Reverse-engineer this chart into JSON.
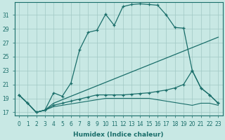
{
  "xlabel": "Humidex (Indice chaleur)",
  "bg_color": "#c8e8e4",
  "grid_color": "#a0c8c4",
  "line_color": "#1a6e6a",
  "xlim": [
    -0.5,
    23.5
  ],
  "ylim": [
    16.5,
    32.8
  ],
  "yticks": [
    17,
    19,
    21,
    23,
    25,
    27,
    29,
    31
  ],
  "xticks": [
    0,
    1,
    2,
    3,
    4,
    5,
    6,
    7,
    8,
    9,
    10,
    11,
    12,
    13,
    14,
    15,
    16,
    17,
    18,
    19,
    20,
    21,
    22,
    23
  ],
  "line1_x": [
    0,
    1,
    2,
    3,
    4,
    5,
    6,
    7,
    8,
    9,
    10,
    11,
    12,
    13,
    14,
    15,
    16,
    17,
    18,
    19,
    20,
    21,
    22,
    23
  ],
  "line1_y": [
    19.5,
    18.3,
    17.0,
    17.3,
    19.8,
    19.3,
    21.2,
    26.0,
    28.5,
    28.8,
    31.1,
    29.5,
    32.2,
    32.5,
    32.6,
    32.5,
    32.4,
    31.0,
    29.2,
    29.1,
    23.0,
    20.5,
    19.5,
    18.3
  ],
  "line1_marker": true,
  "line2_x": [
    0,
    1,
    2,
    3,
    4,
    5,
    6,
    7,
    8,
    9,
    10,
    11,
    12,
    13,
    14,
    15,
    16,
    17,
    18,
    19,
    20,
    21,
    22,
    23
  ],
  "line2_y": [
    19.5,
    18.3,
    17.0,
    17.3,
    18.3,
    18.8,
    19.3,
    19.8,
    20.3,
    20.8,
    21.3,
    21.8,
    22.3,
    22.8,
    23.3,
    23.8,
    24.3,
    24.8,
    25.3,
    25.8,
    26.3,
    26.8,
    27.3,
    27.8
  ],
  "line2_marker": false,
  "line3_x": [
    0,
    1,
    2,
    3,
    4,
    5,
    6,
    7,
    8,
    9,
    10,
    11,
    12,
    13,
    14,
    15,
    16,
    17,
    18,
    19,
    20,
    21,
    22,
    23
  ],
  "line3_y": [
    19.5,
    18.3,
    17.0,
    17.3,
    18.0,
    18.3,
    18.6,
    18.9,
    19.2,
    19.5,
    19.5,
    19.5,
    19.5,
    19.6,
    19.7,
    19.8,
    20.0,
    20.2,
    20.5,
    21.0,
    23.0,
    20.5,
    19.5,
    18.3
  ],
  "line3_marker": true,
  "line4_x": [
    0,
    1,
    2,
    3,
    4,
    5,
    6,
    7,
    8,
    9,
    10,
    11,
    12,
    13,
    14,
    15,
    16,
    17,
    18,
    19,
    20,
    21,
    22,
    23
  ],
  "line4_y": [
    19.5,
    18.3,
    17.0,
    17.3,
    17.8,
    18.0,
    18.2,
    18.4,
    18.6,
    18.8,
    19.0,
    19.0,
    19.0,
    19.0,
    19.0,
    19.0,
    18.8,
    18.6,
    18.4,
    18.2,
    18.0,
    18.3,
    18.3,
    18.0
  ],
  "line4_marker": false
}
